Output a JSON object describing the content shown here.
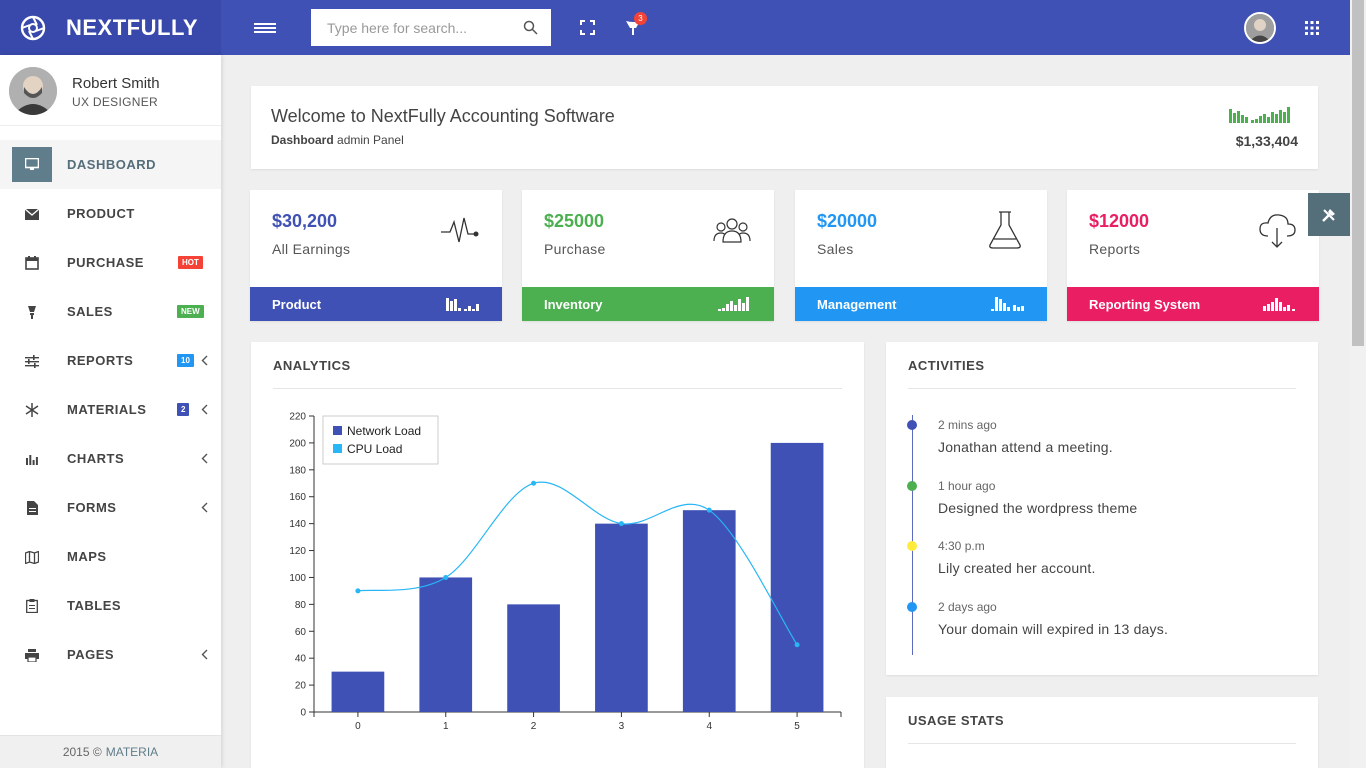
{
  "brand": {
    "name": "NEXTFULLY"
  },
  "topbar": {
    "search_placeholder": "Type here for search...",
    "notification_count": "3"
  },
  "user": {
    "name": "Robert Smith",
    "role": "UX DESIGNER"
  },
  "sidebar": {
    "items": [
      {
        "label": "DASHBOARD",
        "icon": "monitor-icon"
      },
      {
        "label": "PRODUCT",
        "icon": "envelope-icon"
      },
      {
        "label": "PURCHASE",
        "icon": "calendar-icon",
        "badge": "HOT",
        "badge_color": "#f44336"
      },
      {
        "label": "SALES",
        "icon": "lightbulb-icon",
        "badge": "NEW",
        "badge_color": "#4caf50"
      },
      {
        "label": "REPORTS",
        "icon": "sliders-icon",
        "badge": "10",
        "badge_color": "#2196f3"
      },
      {
        "label": "MATERIALS",
        "icon": "asterisk-icon",
        "badge": "2",
        "badge_color": "#3f51b5"
      },
      {
        "label": "CHARTS",
        "icon": "bar-chart-icon"
      },
      {
        "label": "FORMS",
        "icon": "document-icon"
      },
      {
        "label": "MAPS",
        "icon": "map-icon"
      },
      {
        "label": "TABLES",
        "icon": "clipboard-icon"
      },
      {
        "label": "PAGES",
        "icon": "printer-icon"
      }
    ],
    "footer_year": "2015 ©",
    "footer_brand": "MATERIA"
  },
  "welcome": {
    "title": "Welcome to NextFully Accounting Software",
    "sub_bold": "Dashboard",
    "sub_rest": " admin Panel",
    "amount": "$1,33,404"
  },
  "stats": [
    {
      "value": "$30,200",
      "label": "All Earnings",
      "footer": "Product",
      "color": "#3f51b5",
      "icon": "heartbeat-icon"
    },
    {
      "value": "$25000",
      "label": "Purchase",
      "footer": "Inventory",
      "color": "#4caf50",
      "icon": "users-icon"
    },
    {
      "value": "$20000",
      "label": "Sales",
      "footer": "Management",
      "color": "#2196f3",
      "icon": "flask-icon"
    },
    {
      "value": "$12000",
      "label": "Reports",
      "footer": "Reporting System",
      "color": "#e91e63",
      "icon": "cloud-download-icon"
    }
  ],
  "analytics": {
    "title": "ANALYTICS",
    "chart_data": {
      "type": "bar",
      "x": [
        0,
        1,
        2,
        3,
        4,
        5
      ],
      "ylim": [
        0,
        220
      ],
      "yticks": [
        0,
        20,
        40,
        60,
        80,
        100,
        120,
        140,
        160,
        180,
        200,
        220
      ],
      "legend_position": "top-left",
      "series": [
        {
          "name": "Network Load",
          "type": "bar",
          "color": "#3f51b5",
          "values": [
            30,
            100,
            80,
            140,
            150,
            200
          ]
        },
        {
          "name": "CPU Load",
          "type": "line",
          "color": "#29b6f6",
          "values": [
            90,
            100,
            170,
            140,
            150,
            50
          ]
        }
      ]
    }
  },
  "activities": {
    "title": "ACTIVITIES",
    "items": [
      {
        "time": "2 mins ago",
        "text": "Jonathan attend a meeting.",
        "color": "#3f51b5"
      },
      {
        "time": "1 hour ago",
        "text": "Designed the wordpress theme",
        "color": "#4caf50"
      },
      {
        "time": "4:30 p.m",
        "text": "Lily created her account.",
        "color": "#ffeb3b"
      },
      {
        "time": "2 days ago",
        "text": "Your domain will expired in 13 days.",
        "color": "#2196f3"
      }
    ]
  },
  "usage": {
    "title": "USAGE STATS"
  }
}
